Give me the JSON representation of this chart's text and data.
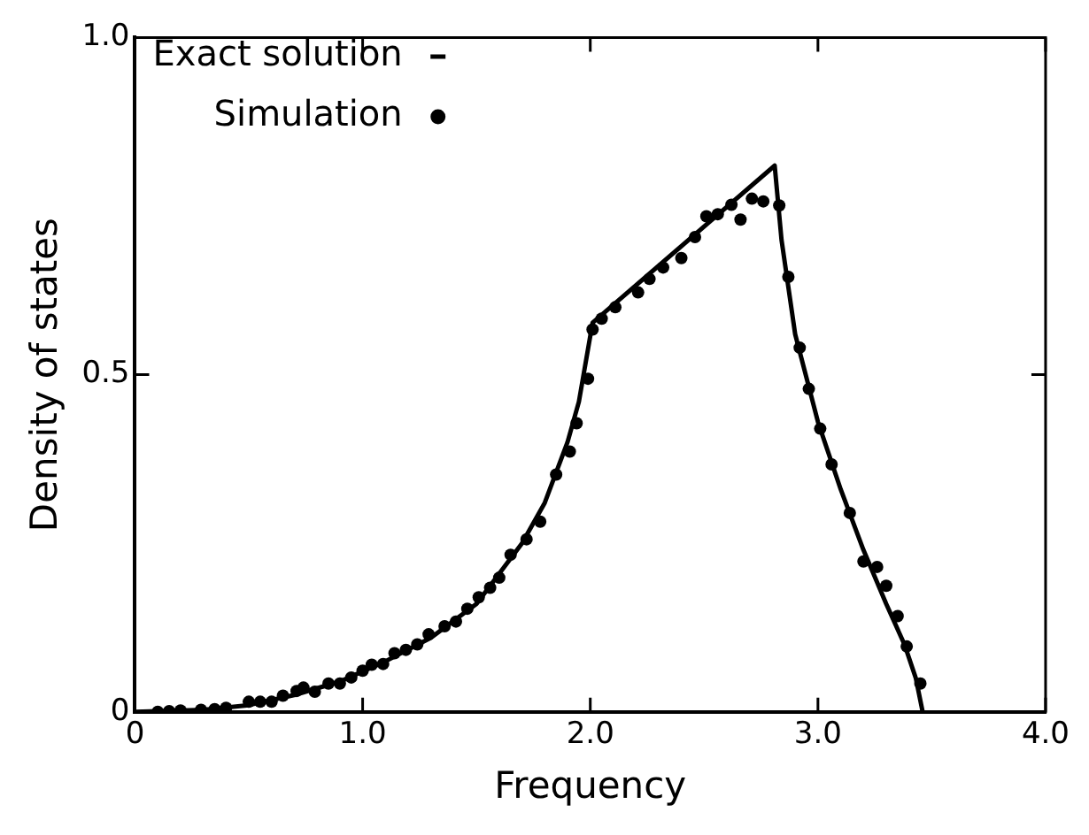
{
  "chart_data": {
    "type": "line",
    "xlabel": "Frequency",
    "ylabel": "Density of states",
    "xlim": [
      0,
      4
    ],
    "ylim": [
      0,
      1
    ],
    "xticks": [
      0,
      {
        "value": 1,
        "label": "1.0"
      },
      {
        "value": 2,
        "label": "2.0"
      },
      {
        "value": 3,
        "label": "3.0"
      },
      {
        "value": 4,
        "label": "4.0"
      }
    ],
    "yticks": [
      0,
      {
        "value": 0.5,
        "label": "0.5"
      },
      {
        "value": 1,
        "label": "1.0"
      }
    ],
    "grid": false,
    "legend": "top left",
    "series": [
      {
        "name": "Exact solution",
        "type": "line",
        "color": "#000000",
        "marker": "none",
        "line_style": "solid",
        "x": [
          0,
          0.3,
          0.5,
          0.7,
          0.9,
          1.1,
          1.3,
          1.5,
          1.7,
          1.8,
          1.9,
          1.95,
          2.01,
          2.81,
          2.84,
          2.9,
          3.0,
          3.1,
          3.2,
          3.3,
          3.38,
          3.43,
          3.46
        ],
        "values": [
          0,
          0.003,
          0.01,
          0.025,
          0.045,
          0.075,
          0.11,
          0.16,
          0.25,
          0.31,
          0.4,
          0.46,
          0.577,
          0.81,
          0.7,
          0.56,
          0.43,
          0.33,
          0.24,
          0.16,
          0.1,
          0.05,
          0
        ]
      },
      {
        "name": "Simulation",
        "type": "scatter",
        "color": "#000000",
        "marker": "circle",
        "x": [
          0.1,
          0.15,
          0.2,
          0.29,
          0.35,
          0.4,
          0.5,
          0.55,
          0.6,
          0.65,
          0.71,
          0.74,
          0.79,
          0.85,
          0.9,
          0.95,
          1.0,
          1.04,
          1.09,
          1.14,
          1.19,
          1.24,
          1.29,
          1.36,
          1.41,
          1.46,
          1.51,
          1.56,
          1.6,
          1.65,
          1.72,
          1.78,
          1.85,
          1.91,
          1.94,
          1.99,
          2.01,
          2.05,
          2.11,
          2.21,
          2.26,
          2.32,
          2.4,
          2.46,
          2.51,
          2.56,
          2.62,
          2.66,
          2.71,
          2.76,
          2.83,
          2.87,
          2.92,
          2.96,
          3.01,
          3.06,
          3.14,
          3.2,
          3.26,
          3.3,
          3.35,
          3.39,
          3.45
        ],
        "values": [
          0,
          0.001,
          0.002,
          0.003,
          0.004,
          0.006,
          0.015,
          0.015,
          0.015,
          0.024,
          0.031,
          0.036,
          0.03,
          0.042,
          0.042,
          0.051,
          0.061,
          0.07,
          0.071,
          0.087,
          0.092,
          0.1,
          0.115,
          0.127,
          0.134,
          0.153,
          0.17,
          0.184,
          0.199,
          0.233,
          0.256,
          0.282,
          0.352,
          0.386,
          0.428,
          0.494,
          0.567,
          0.583,
          0.6,
          0.622,
          0.642,
          0.659,
          0.673,
          0.704,
          0.735,
          0.738,
          0.752,
          0.73,
          0.761,
          0.757,
          0.751,
          0.645,
          0.54,
          0.479,
          0.42,
          0.367,
          0.295,
          0.223,
          0.215,
          0.187,
          0.142,
          0.097,
          0.042
        ]
      }
    ]
  }
}
